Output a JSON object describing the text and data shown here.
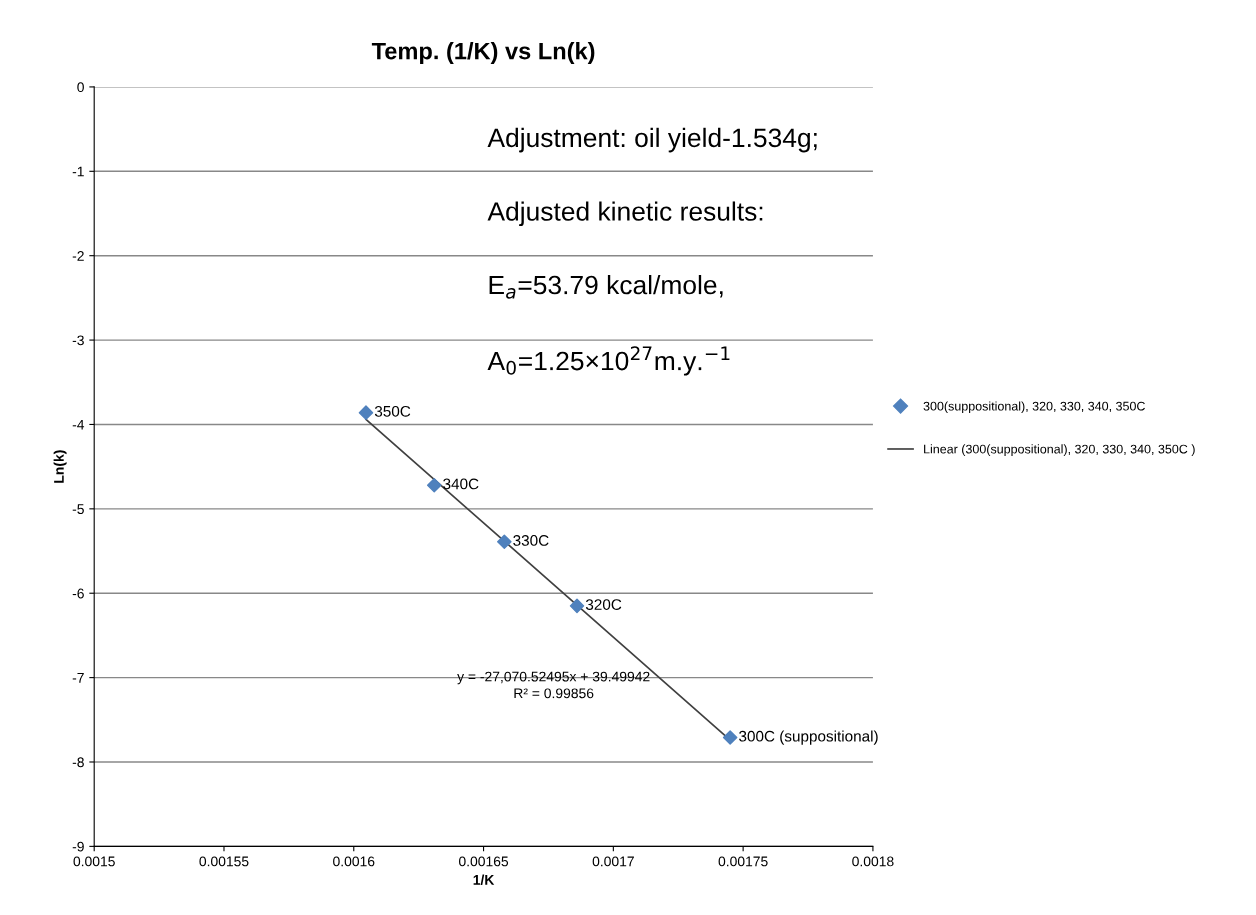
{
  "chart_data": {
    "type": "scatter",
    "title": "Temp. (1/K) vs Ln(k)",
    "xlabel": "1/K",
    "ylabel": "Ln(k)",
    "series": [
      {
        "name": "300(suppositional), 320, 330, 340, 350C",
        "marker": "diamond",
        "color": "#4f81bd",
        "x": [
          0.0016047,
          0.001631,
          0.001658,
          0.001686,
          0.001745
        ],
        "values": [
          -3.86,
          -4.72,
          -5.39,
          -6.15,
          -7.71
        ]
      },
      {
        "name": "Linear (300(suppositional), 320, 330, 340, 350C )",
        "type": "line",
        "marker": "none",
        "color": "#404040",
        "x": [
          0.0016047,
          0.001745
        ],
        "values": [
          -3.94,
          -7.74
        ]
      }
    ],
    "xlim": [
      0.0015,
      0.0018
    ],
    "xticks": [
      0.0015,
      0.00155,
      0.0016,
      0.00165,
      0.0017,
      0.00175,
      0.0018
    ],
    "ylim": [
      -9,
      0
    ],
    "yticks": [
      -9,
      -8,
      -7,
      -6,
      -5,
      -4,
      -3,
      -2,
      -1,
      0
    ],
    "grid": "y",
    "legend": "right",
    "annotations": [
      {
        "text": "350C",
        "x": 0.0016047,
        "y": -3.86
      },
      {
        "text": "340C",
        "x": 0.001631,
        "y": -4.72
      },
      {
        "text": "330C",
        "x": 0.001658,
        "y": -5.39
      },
      {
        "text": "320C",
        "x": 0.001686,
        "y": -6.15
      },
      {
        "text": "300C (suppositional)",
        "x": 0.001745,
        "y": -7.71
      },
      "y = -27,070.52495x + 39.49942",
      "R² = 0.99856",
      "Adjustment: oil yield-1.534g;",
      "Adjusted kinetic results:",
      "E$_{a}$=53.79 kcal/mole,",
      "A$_{0}$=1.25×10$^{27}$m.y.$^{−1}$"
    ]
  }
}
